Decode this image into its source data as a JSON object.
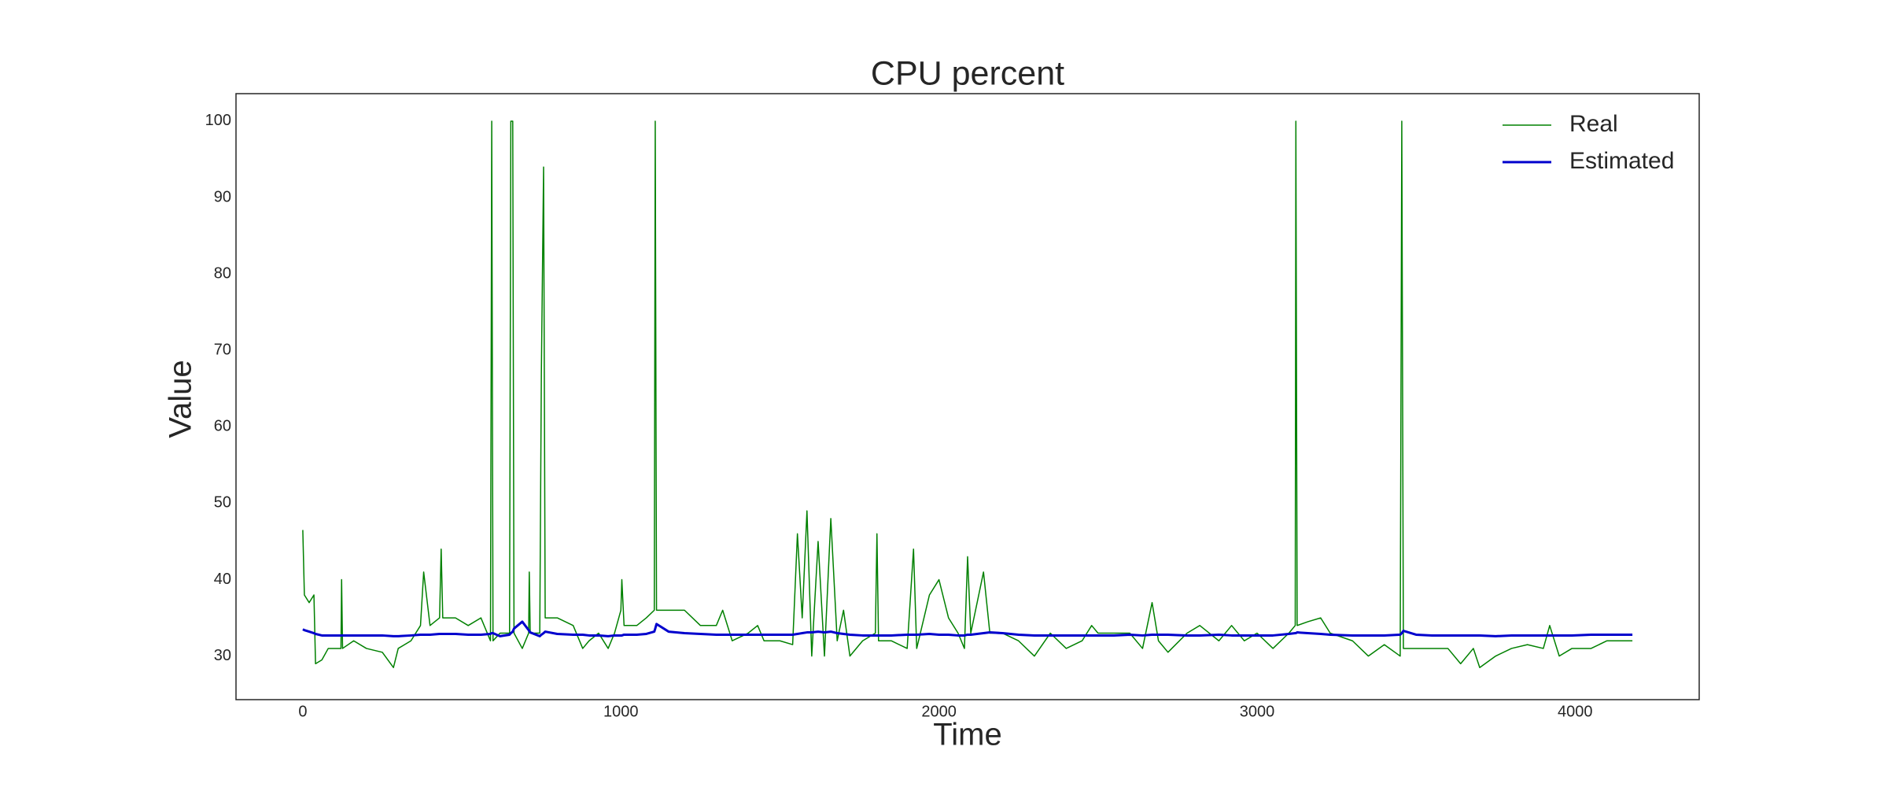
{
  "chart_data": {
    "type": "line",
    "title": "CPU percent",
    "x_label": "Time",
    "y_label": "Value",
    "x": [
      0,
      5,
      20,
      35,
      40,
      60,
      80,
      120,
      122,
      125,
      160,
      200,
      250,
      285,
      300,
      340,
      370,
      380,
      400,
      430,
      435,
      440,
      480,
      520,
      560,
      590,
      594,
      598,
      620,
      650,
      654,
      660,
      664,
      690,
      710,
      712,
      715,
      745,
      750,
      757,
      762,
      800,
      850,
      880,
      900,
      930,
      960,
      980,
      1000,
      1003,
      1010,
      1050,
      1080,
      1105,
      1108,
      1112,
      1150,
      1200,
      1250,
      1300,
      1320,
      1350,
      1400,
      1430,
      1450,
      1500,
      1540,
      1555,
      1570,
      1585,
      1600,
      1620,
      1640,
      1660,
      1680,
      1700,
      1720,
      1760,
      1800,
      1805,
      1810,
      1850,
      1900,
      1920,
      1930,
      1970,
      2000,
      2030,
      2060,
      2080,
      2090,
      2100,
      2140,
      2160,
      2200,
      2250,
      2300,
      2350,
      2400,
      2450,
      2480,
      2500,
      2550,
      2600,
      2640,
      2670,
      2690,
      2720,
      2780,
      2820,
      2880,
      2920,
      2960,
      3000,
      3050,
      3100,
      3120,
      3122,
      3126,
      3160,
      3200,
      3230,
      3300,
      3350,
      3400,
      3450,
      3455,
      3460,
      3500,
      3550,
      3600,
      3640,
      3680,
      3700,
      3750,
      3800,
      3850,
      3900,
      3920,
      3950,
      3990,
      4050,
      4100,
      4180
    ],
    "series": [
      {
        "name": "Real",
        "color": "#008000",
        "values": [
          46.5,
          38,
          37,
          38,
          29,
          29.5,
          31,
          31,
          40,
          31,
          32,
          31,
          30.5,
          28.5,
          31,
          32,
          34,
          41,
          34,
          35,
          44,
          35,
          35,
          34,
          35,
          32,
          100,
          32,
          33,
          33,
          100,
          100,
          33,
          31,
          33,
          41,
          33,
          33,
          67,
          94,
          35,
          35,
          34,
          31,
          32,
          33,
          31,
          33,
          36,
          40,
          34,
          34,
          35,
          36,
          100,
          36,
          36,
          36,
          34,
          34,
          36,
          32,
          33,
          34,
          32,
          32,
          31.5,
          46,
          35,
          49,
          30,
          45,
          30,
          48,
          32,
          36,
          30,
          32,
          33,
          46,
          32,
          32,
          31,
          44,
          31,
          38,
          40,
          35,
          33,
          31,
          43,
          33,
          41,
          33,
          33,
          32,
          30,
          33,
          31,
          32,
          34,
          33,
          33,
          33,
          31,
          37,
          32,
          30.5,
          33,
          34,
          32,
          34,
          32,
          33,
          31,
          33,
          34,
          100,
          34,
          34.5,
          35,
          33,
          32,
          30,
          31.5,
          30,
          100,
          31,
          31,
          31,
          31,
          29,
          31,
          28.5,
          30,
          31,
          31.5,
          31,
          34,
          30,
          31,
          31,
          32,
          32
        ]
      },
      {
        "name": "Estimated",
        "color": "#0000cd",
        "values": [
          33.5,
          33.4,
          33.2,
          33,
          32.9,
          32.7,
          32.7,
          32.7,
          32.7,
          32.7,
          32.7,
          32.7,
          32.7,
          32.6,
          32.6,
          32.7,
          32.8,
          32.8,
          32.8,
          32.9,
          32.9,
          32.9,
          32.9,
          32.8,
          32.8,
          32.9,
          33,
          33,
          32.6,
          32.8,
          33,
          33.2,
          33.6,
          34.5,
          33.4,
          33.3,
          33.1,
          32.6,
          32.8,
          33,
          33.2,
          32.9,
          32.8,
          32.8,
          32.7,
          32.7,
          32.6,
          32.7,
          32.7,
          32.7,
          32.8,
          32.8,
          32.9,
          33.2,
          33.6,
          34.2,
          33.2,
          33,
          32.9,
          32.8,
          32.8,
          32.8,
          32.8,
          32.8,
          32.8,
          32.8,
          32.8,
          32.9,
          33,
          33.1,
          33.1,
          33.2,
          33.1,
          33.2,
          33,
          32.9,
          32.8,
          32.7,
          32.7,
          32.7,
          32.7,
          32.7,
          32.8,
          32.8,
          32.8,
          32.9,
          32.8,
          32.8,
          32.7,
          32.7,
          32.8,
          32.8,
          33,
          33.1,
          33,
          32.8,
          32.7,
          32.7,
          32.7,
          32.7,
          32.7,
          32.7,
          32.7,
          32.8,
          32.7,
          32.8,
          32.8,
          32.8,
          32.7,
          32.7,
          32.8,
          32.7,
          32.7,
          32.7,
          32.7,
          32.9,
          33,
          33,
          33.1,
          33,
          32.9,
          32.8,
          32.7,
          32.7,
          32.7,
          32.8,
          33,
          33.3,
          32.8,
          32.7,
          32.7,
          32.7,
          32.7,
          32.7,
          32.6,
          32.7,
          32.7,
          32.7,
          32.7,
          32.7,
          32.7,
          32.8,
          32.8,
          32.8
        ]
      }
    ],
    "xlim": [
      -210,
      4390
    ],
    "xticks": [
      0,
      1000,
      2000,
      3000,
      4000
    ],
    "ylim": [
      24.3,
      103.6
    ],
    "yticks": [
      30,
      40,
      50,
      60,
      70,
      80,
      90,
      100
    ],
    "grid": false,
    "legend": "upper right"
  }
}
